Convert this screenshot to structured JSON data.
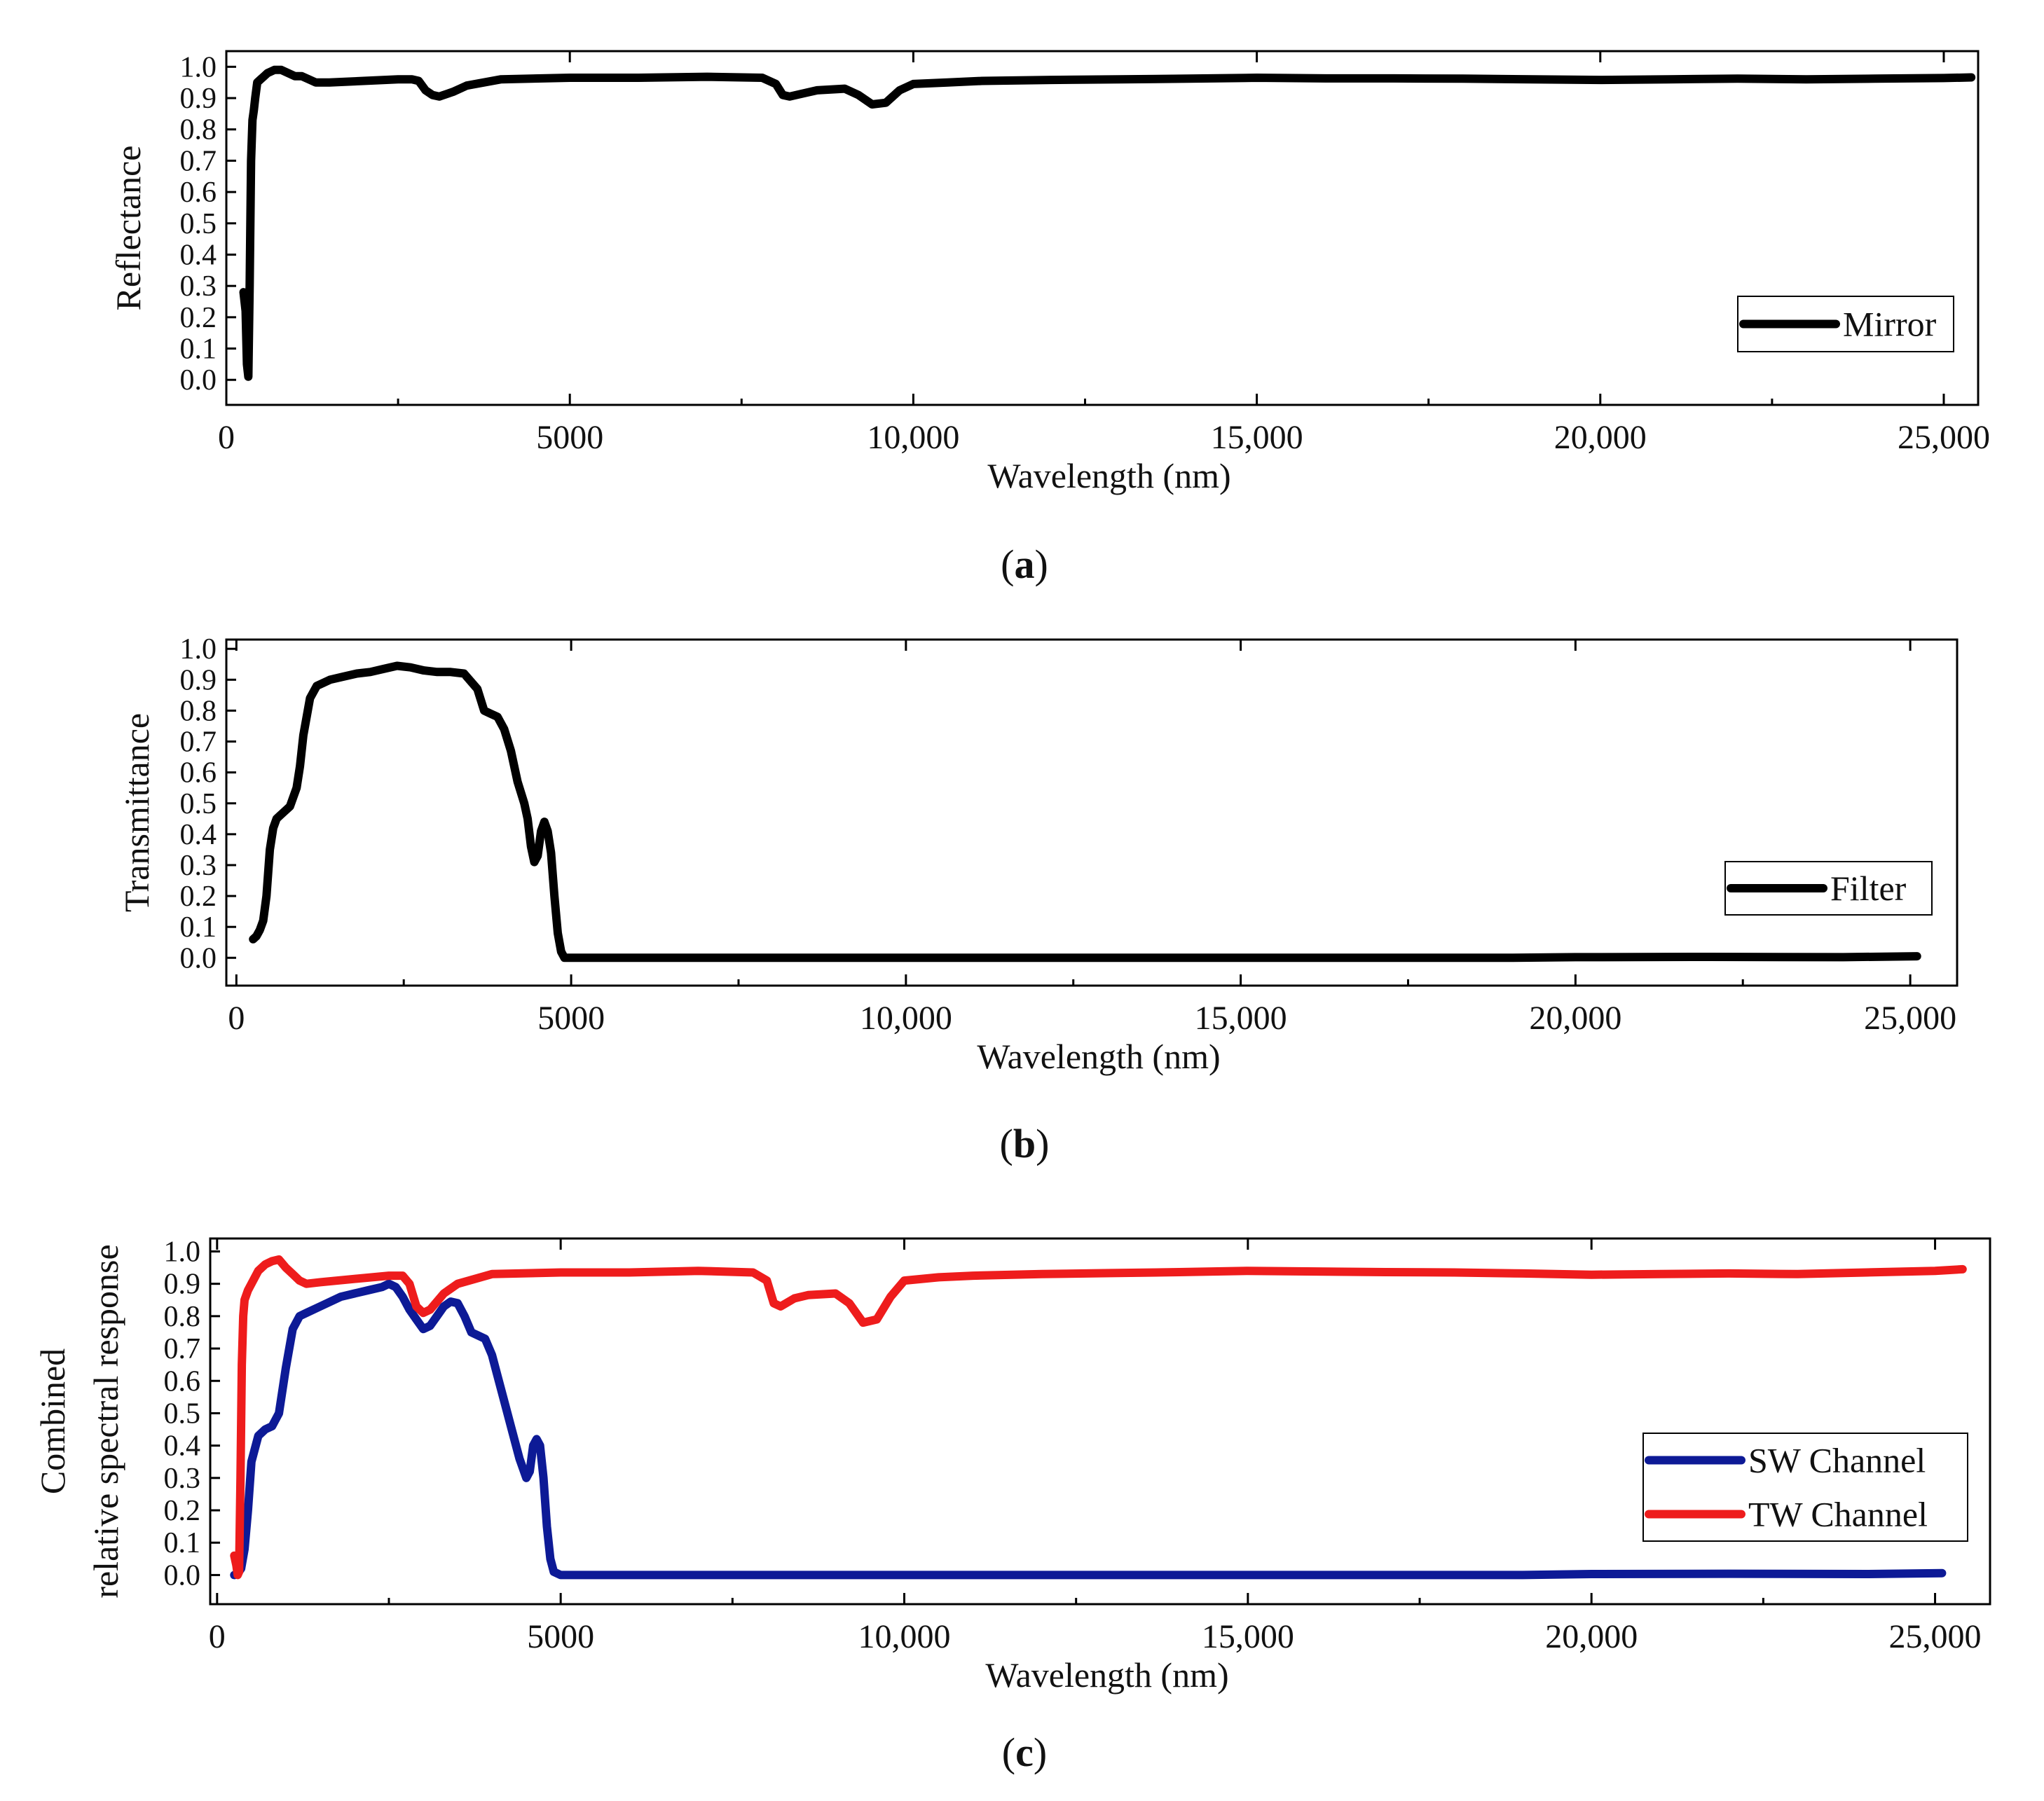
{
  "chart_data": [
    {
      "type": "line",
      "panel_label": "a",
      "xlabel": "Wavelength (nm)",
      "ylabel": "Reflectance",
      "ylabel_lines": [
        "Reflectance"
      ],
      "xlim": [
        0,
        25500
      ],
      "ylim": [
        -0.08,
        1.05
      ],
      "xticks": [
        0,
        5000,
        10000,
        15000,
        20000,
        25000
      ],
      "xtick_labels": [
        "0",
        "5000",
        "10,000",
        "15,000",
        "20,000",
        "25,000"
      ],
      "yticks": [
        0.0,
        0.1,
        0.2,
        0.3,
        0.4,
        0.5,
        0.6,
        0.7,
        0.8,
        0.9,
        1.0
      ],
      "ytick_labels": [
        "0.0",
        "0.1",
        "0.2",
        "0.3",
        "0.4",
        "0.5",
        "0.6",
        "0.7",
        "0.8",
        "0.9",
        "1.0"
      ],
      "legend_position": "right",
      "series": [
        {
          "name": "Mirror",
          "color": "#000000",
          "x": [
            250,
            280,
            300,
            320,
            340,
            360,
            380,
            400,
            420,
            450,
            500,
            550,
            600,
            700,
            800,
            900,
            1000,
            1100,
            1200,
            1300,
            1500,
            2000,
            2500,
            2700,
            2800,
            2900,
            3000,
            3100,
            3300,
            3500,
            4000,
            5000,
            6000,
            7000,
            7800,
            8000,
            8100,
            8200,
            8400,
            8600,
            9000,
            9200,
            9400,
            9600,
            9800,
            10000,
            10500,
            11000,
            12000,
            13000,
            14000,
            15000,
            16000,
            17000,
            18000,
            19000,
            20000,
            21000,
            22000,
            23000,
            24000,
            25000,
            25400
          ],
          "y": [
            0.28,
            0.22,
            0.05,
            0.01,
            0.3,
            0.7,
            0.83,
            0.86,
            0.9,
            0.95,
            0.96,
            0.97,
            0.98,
            0.99,
            0.99,
            0.98,
            0.97,
            0.97,
            0.96,
            0.95,
            0.95,
            0.955,
            0.96,
            0.96,
            0.955,
            0.925,
            0.91,
            0.905,
            0.92,
            0.94,
            0.96,
            0.965,
            0.965,
            0.968,
            0.965,
            0.945,
            0.91,
            0.905,
            0.915,
            0.925,
            0.93,
            0.91,
            0.88,
            0.885,
            0.925,
            0.945,
            0.95,
            0.955,
            0.958,
            0.96,
            0.962,
            0.965,
            0.963,
            0.963,
            0.962,
            0.96,
            0.958,
            0.96,
            0.962,
            0.96,
            0.962,
            0.964,
            0.966
          ]
        }
      ]
    },
    {
      "type": "line",
      "panel_label": "b",
      "xlabel": "Wavelength (nm)",
      "ylabel": "Transmittance",
      "ylabel_lines": [
        "Transmittance"
      ],
      "xlim": [
        -150,
        25700
      ],
      "ylim": [
        -0.09,
        1.03
      ],
      "xticks": [
        0,
        5000,
        10000,
        15000,
        20000,
        25000
      ],
      "xtick_labels": [
        "0",
        "5000",
        "10,000",
        "15,000",
        "20,000",
        "25,000"
      ],
      "yticks": [
        0.0,
        0.1,
        0.2,
        0.3,
        0.4,
        0.5,
        0.6,
        0.7,
        0.8,
        0.9,
        1.0
      ],
      "ytick_labels": [
        "0.0",
        "0.1",
        "0.2",
        "0.3",
        "0.4",
        "0.5",
        "0.6",
        "0.7",
        "0.8",
        "0.9",
        "1.0"
      ],
      "legend_position": "right",
      "series": [
        {
          "name": "Filter",
          "color": "#000000",
          "x": [
            250,
            300,
            350,
            400,
            450,
            500,
            550,
            600,
            650,
            700,
            800,
            900,
            950,
            1000,
            1100,
            1200,
            1300,
            1400,
            1600,
            1800,
            2000,
            2200,
            2400,
            2600,
            2800,
            3000,
            3200,
            3400,
            3600,
            3700,
            3800,
            3900,
            4000,
            4100,
            4200,
            4300,
            4350,
            4400,
            4450,
            4500,
            4550,
            4600,
            4650,
            4700,
            4750,
            4800,
            4850,
            4900,
            5000,
            6000,
            8000,
            10000,
            12000,
            14000,
            16000,
            18000,
            19000,
            20000,
            22000,
            24000,
            25100
          ],
          "y": [
            0.06,
            0.07,
            0.09,
            0.12,
            0.2,
            0.35,
            0.42,
            0.45,
            0.46,
            0.47,
            0.49,
            0.55,
            0.62,
            0.72,
            0.84,
            0.88,
            0.89,
            0.9,
            0.91,
            0.92,
            0.925,
            0.935,
            0.945,
            0.94,
            0.93,
            0.925,
            0.925,
            0.92,
            0.87,
            0.8,
            0.79,
            0.78,
            0.74,
            0.67,
            0.57,
            0.5,
            0.45,
            0.36,
            0.31,
            0.33,
            0.41,
            0.44,
            0.41,
            0.34,
            0.2,
            0.08,
            0.02,
            0.0,
            0.0,
            0.0,
            0.0,
            0.0,
            0.0,
            0.0,
            0.0,
            0.0,
            0.0,
            0.002,
            0.003,
            0.002,
            0.005
          ]
        }
      ]
    },
    {
      "type": "line",
      "panel_label": "c",
      "xlabel": "Wavelength (nm)",
      "ylabel": "Combined relative spectral response",
      "ylabel_lines": [
        "Combined",
        "relative spectral response"
      ],
      "xlim": [
        -100,
        25800
      ],
      "ylim": [
        -0.09,
        1.04
      ],
      "xticks": [
        0,
        5000,
        10000,
        15000,
        20000,
        25000
      ],
      "xtick_labels": [
        "0",
        "5000",
        "10,000",
        "15,000",
        "20,000",
        "25,000"
      ],
      "yticks": [
        0.0,
        0.1,
        0.2,
        0.3,
        0.4,
        0.5,
        0.6,
        0.7,
        0.8,
        0.9,
        1.0
      ],
      "ytick_labels": [
        "0.0",
        "0.1",
        "0.2",
        "0.3",
        "0.4",
        "0.5",
        "0.6",
        "0.7",
        "0.8",
        "0.9",
        "1.0"
      ],
      "legend_position": "right",
      "series": [
        {
          "name": "SW  Channel",
          "color": "#0d1a96",
          "x": [
            250,
            300,
            350,
            400,
            450,
            500,
            600,
            700,
            800,
            900,
            1000,
            1100,
            1200,
            1300,
            1500,
            1800,
            2000,
            2200,
            2400,
            2500,
            2600,
            2700,
            2800,
            2900,
            3000,
            3100,
            3200,
            3300,
            3400,
            3500,
            3600,
            3700,
            3800,
            3900,
            4000,
            4100,
            4200,
            4300,
            4400,
            4500,
            4550,
            4600,
            4650,
            4700,
            4750,
            4800,
            4850,
            4900,
            5000,
            6000,
            8000,
            10000,
            12000,
            14000,
            16000,
            18000,
            19000,
            20000,
            22000,
            24000,
            25100
          ],
          "y": [
            0.0,
            0.005,
            0.02,
            0.08,
            0.2,
            0.35,
            0.43,
            0.45,
            0.46,
            0.5,
            0.64,
            0.76,
            0.8,
            0.81,
            0.83,
            0.86,
            0.87,
            0.88,
            0.89,
            0.9,
            0.89,
            0.86,
            0.82,
            0.79,
            0.76,
            0.77,
            0.8,
            0.83,
            0.845,
            0.84,
            0.8,
            0.75,
            0.74,
            0.73,
            0.68,
            0.6,
            0.52,
            0.44,
            0.36,
            0.3,
            0.32,
            0.4,
            0.42,
            0.4,
            0.3,
            0.15,
            0.05,
            0.01,
            0.0,
            0.0,
            0.0,
            0.0,
            0.0,
            0.0,
            0.0,
            0.0,
            0.0,
            0.003,
            0.004,
            0.003,
            0.006
          ]
        },
        {
          "name": "TW  Channel",
          "color": "#ee1c1c",
          "x": [
            250,
            280,
            300,
            320,
            340,
            360,
            380,
            400,
            450,
            500,
            600,
            700,
            800,
            900,
            1000,
            1100,
            1200,
            1300,
            1500,
            2000,
            2500,
            2700,
            2800,
            2900,
            3000,
            3100,
            3300,
            3500,
            4000,
            5000,
            6000,
            7000,
            7800,
            8000,
            8100,
            8200,
            8400,
            8600,
            9000,
            9200,
            9400,
            9600,
            9800,
            10000,
            10500,
            11000,
            12000,
            13000,
            14000,
            15000,
            16000,
            17000,
            18000,
            19000,
            20000,
            21000,
            22000,
            23000,
            24000,
            25000,
            25400
          ],
          "y": [
            0.06,
            0.03,
            0.0,
            0.01,
            0.3,
            0.65,
            0.8,
            0.85,
            0.88,
            0.9,
            0.94,
            0.96,
            0.97,
            0.975,
            0.95,
            0.93,
            0.91,
            0.9,
            0.905,
            0.915,
            0.925,
            0.925,
            0.9,
            0.83,
            0.81,
            0.82,
            0.87,
            0.9,
            0.93,
            0.935,
            0.935,
            0.94,
            0.935,
            0.91,
            0.84,
            0.83,
            0.855,
            0.865,
            0.87,
            0.84,
            0.78,
            0.79,
            0.86,
            0.91,
            0.92,
            0.925,
            0.93,
            0.933,
            0.936,
            0.94,
            0.938,
            0.936,
            0.935,
            0.932,
            0.928,
            0.93,
            0.932,
            0.93,
            0.935,
            0.94,
            0.945
          ]
        }
      ]
    }
  ]
}
